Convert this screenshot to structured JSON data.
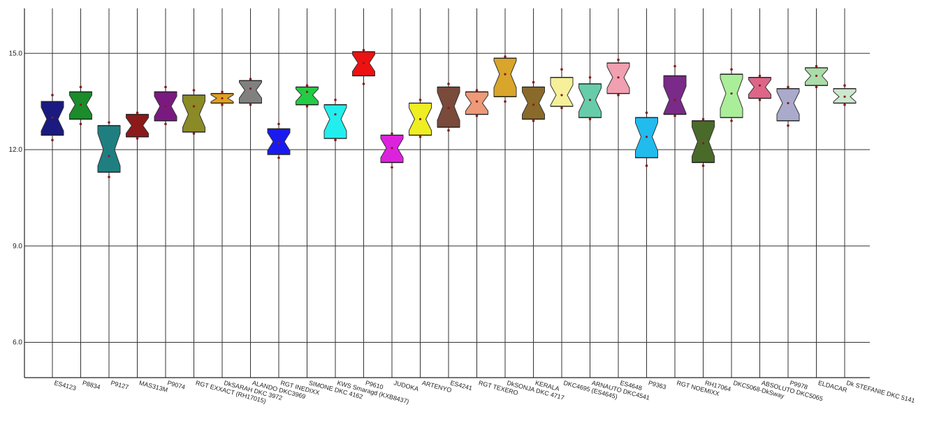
{
  "chart_data": {
    "type": "boxplot",
    "title": "",
    "xlabel": "",
    "ylabel": "",
    "ylim": [
      4.9,
      16.4
    ],
    "yticks": [
      6.0,
      9.0,
      12.0,
      15.0
    ],
    "ytick_labels": [
      "6.0",
      "9.0",
      "12.0",
      "15.0"
    ],
    "grid": {
      "horizontal": true,
      "vertical": true
    },
    "categories": [
      "ES4123",
      "P8834",
      "P9127",
      "MAS313M",
      "P9074",
      "RGT EXXACT (RH17015)",
      "DkSARAH DKC 3972",
      "ALANDO DKC3969",
      "RGT INEDIXX",
      "SIMONE DKC 4162",
      "KWS Smaragd (KXB8437)",
      "P9610",
      "JUDOKA",
      "ARTENYO",
      "ES4241",
      "RGT TEXERO",
      "DkSONJA DKC 4717",
      "KERALA",
      "DKC4695 (ES4645)",
      "ARNAUTO DKC4541",
      "ES4648",
      "P9363",
      "RGT NOEMIXX",
      "RH17064",
      "DKC5068-DkSway",
      "ABSOLUTO DKC5065",
      "P9978",
      "ELDACAR",
      "Dk STEFANIE DKC 5141"
    ],
    "boxes": [
      {
        "q1": 12.45,
        "median": 12.95,
        "q3": 13.5,
        "min": 12.3,
        "max": 13.7,
        "mean": 13.0,
        "color": "#1a1a80"
      },
      {
        "q1": 12.95,
        "median": 13.4,
        "q3": 13.8,
        "min": 12.8,
        "max": 13.95,
        "mean": 13.4,
        "color": "#1a8c2a"
      },
      {
        "q1": 11.3,
        "median": 12.0,
        "q3": 12.75,
        "min": 11.15,
        "max": 12.85,
        "mean": 11.8,
        "color": "#1f7f80"
      },
      {
        "q1": 12.4,
        "median": 12.75,
        "q3": 13.1,
        "min": 12.35,
        "max": 13.15,
        "mean": 12.75,
        "color": "#8c1a1a"
      },
      {
        "q1": 12.9,
        "median": 13.35,
        "q3": 13.8,
        "min": 12.8,
        "max": 13.95,
        "mean": 13.35,
        "color": "#7a1a80"
      },
      {
        "q1": 12.55,
        "median": 13.1,
        "q3": 13.7,
        "min": 12.5,
        "max": 13.85,
        "mean": 13.35,
        "color": "#8a8a26"
      },
      {
        "q1": 13.45,
        "median": 13.6,
        "q3": 13.75,
        "min": 13.4,
        "max": 13.8,
        "mean": 13.6,
        "color": "#e0a020"
      },
      {
        "q1": 13.45,
        "median": 13.85,
        "q3": 14.15,
        "min": 13.4,
        "max": 14.2,
        "mean": 13.9,
        "color": "#808080"
      },
      {
        "q1": 11.85,
        "median": 12.25,
        "q3": 12.65,
        "min": 11.75,
        "max": 12.8,
        "mean": 12.2,
        "color": "#1a1aee"
      },
      {
        "q1": 13.4,
        "median": 13.7,
        "q3": 13.95,
        "min": 13.35,
        "max": 14.0,
        "mean": 13.8,
        "color": "#22cc44"
      },
      {
        "q1": 12.35,
        "median": 12.95,
        "q3": 13.4,
        "min": 12.3,
        "max": 13.55,
        "mean": 13.1,
        "color": "#22eeee"
      },
      {
        "q1": 14.3,
        "median": 14.7,
        "q3": 15.05,
        "min": 14.05,
        "max": 15.1,
        "mean": 14.7,
        "color": "#ee1111"
      },
      {
        "q1": 11.6,
        "median": 12.05,
        "q3": 12.45,
        "min": 11.45,
        "max": 12.5,
        "mean": 12.05,
        "color": "#dd22dd"
      },
      {
        "q1": 12.45,
        "median": 12.95,
        "q3": 13.45,
        "min": 12.4,
        "max": 13.55,
        "mean": 12.95,
        "color": "#eeee22"
      },
      {
        "q1": 12.7,
        "median": 13.35,
        "q3": 13.95,
        "min": 12.6,
        "max": 14.05,
        "mean": 13.3,
        "color": "#7a4a3a"
      },
      {
        "q1": 13.1,
        "median": 13.45,
        "q3": 13.8,
        "min": 13.05,
        "max": 13.85,
        "mean": 13.5,
        "color": "#ee9977"
      },
      {
        "q1": 13.65,
        "median": 14.35,
        "q3": 14.85,
        "min": 13.5,
        "max": 14.9,
        "mean": 14.35,
        "color": "#d9a52a"
      },
      {
        "q1": 12.95,
        "median": 13.45,
        "q3": 13.95,
        "min": 12.9,
        "max": 14.1,
        "mean": 13.4,
        "color": "#8a6a2a"
      },
      {
        "q1": 13.35,
        "median": 13.7,
        "q3": 14.25,
        "min": 13.3,
        "max": 14.5,
        "mean": 13.7,
        "color": "#f5f099"
      },
      {
        "q1": 13.0,
        "median": 13.55,
        "q3": 14.05,
        "min": 12.95,
        "max": 14.25,
        "mean": 13.55,
        "color": "#66ccaa"
      },
      {
        "q1": 13.75,
        "median": 14.25,
        "q3": 14.7,
        "min": 13.7,
        "max": 14.8,
        "mean": 14.25,
        "color": "#f0a0b0"
      },
      {
        "q1": 11.75,
        "median": 12.4,
        "q3": 13.0,
        "min": 11.5,
        "max": 13.15,
        "mean": 12.4,
        "color": "#22bbee"
      },
      {
        "q1": 13.1,
        "median": 13.55,
        "q3": 14.3,
        "min": 13.05,
        "max": 14.6,
        "mean": 13.55,
        "color": "#7a2a88"
      },
      {
        "q1": 11.6,
        "median": 12.25,
        "q3": 12.9,
        "min": 11.5,
        "max": 12.95,
        "mean": 12.2,
        "color": "#4a6a2a"
      },
      {
        "q1": 13.0,
        "median": 13.75,
        "q3": 14.35,
        "min": 12.9,
        "max": 14.5,
        "mean": 13.75,
        "color": "#aaee99"
      },
      {
        "q1": 13.6,
        "median": 13.95,
        "q3": 14.25,
        "min": 13.55,
        "max": 14.3,
        "mean": 14.0,
        "color": "#dd6688"
      },
      {
        "q1": 12.9,
        "median": 13.45,
        "q3": 13.9,
        "min": 12.75,
        "max": 13.95,
        "mean": 13.45,
        "color": "#aaaacc"
      },
      {
        "q1": 14.0,
        "median": 14.3,
        "q3": 14.55,
        "min": 13.95,
        "max": 14.6,
        "mean": 14.3,
        "color": "#aaddaa"
      },
      {
        "q1": 13.45,
        "median": 13.65,
        "q3": 13.9,
        "min": 13.4,
        "max": 14.0,
        "mean": 13.65,
        "color": "#cce8cc"
      }
    ]
  }
}
